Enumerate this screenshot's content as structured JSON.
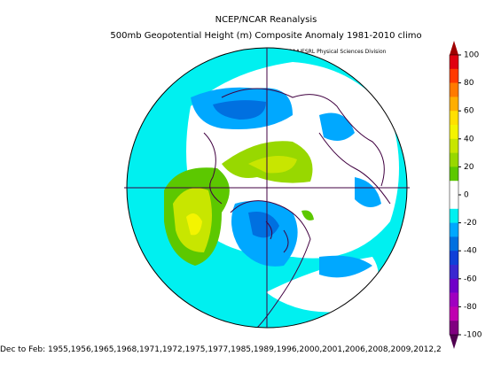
{
  "header": {
    "title": "NCEP/NCAR Reanalysis",
    "subtitle": "500mb Geopotential Height (m) Composite Anomaly 1981-2010 climo",
    "credit": "NOAA/ESRL Physical Sciences Division"
  },
  "colorbar": {
    "range": [
      -100,
      100
    ],
    "ticks": [
      100,
      80,
      60,
      40,
      20,
      0,
      -20,
      -40,
      -60,
      -80,
      -100
    ],
    "colors": [
      "#e00010",
      "#ff3a00",
      "#ff7a00",
      "#ffae00",
      "#ffe000",
      "#f4f400",
      "#c8e600",
      "#98d800",
      "#5cc800",
      "#ffffff",
      "#ffffff",
      "#00f0f0",
      "#00a8ff",
      "#0070e0",
      "#1040d8",
      "#3a28d0",
      "#7000c8",
      "#a000c0",
      "#c000b0",
      "#800080"
    ],
    "top_color": "#a00000",
    "bottom_color": "#500050"
  },
  "footer": {
    "text": "Dec to Feb: 1955,1956,1965,1968,1971,1972,1975,1977,1985,1989,1996,2000,2001,2006,2008,2009,2012,2"
  }
}
